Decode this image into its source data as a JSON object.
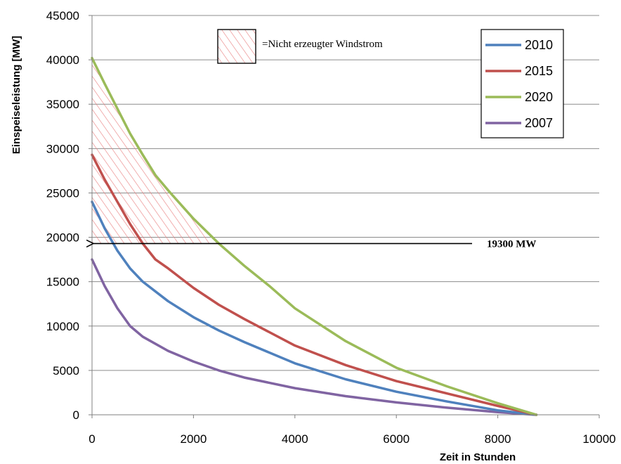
{
  "chart_data": {
    "type": "line",
    "title": "",
    "xlabel": "Zeit in Stunden",
    "ylabel": "Einspeiseleistung [MW]",
    "xlim": [
      0,
      10000
    ],
    "ylim": [
      0,
      45000
    ],
    "xticks": [
      0,
      2000,
      4000,
      6000,
      8000,
      10000
    ],
    "yticks": [
      0,
      5000,
      10000,
      15000,
      20000,
      25000,
      30000,
      35000,
      40000,
      45000
    ],
    "grid": "horizontal",
    "legend_position": "top-right",
    "series": [
      {
        "name": "2010",
        "color": "#4f81bd",
        "x": [
          0,
          250,
          500,
          750,
          1000,
          1500,
          2000,
          2500,
          3000,
          4000,
          5000,
          6000,
          7000,
          8000,
          8760
        ],
        "y": [
          24000,
          21000,
          18500,
          16500,
          15000,
          12800,
          11000,
          9500,
          8200,
          5800,
          4000,
          2600,
          1500,
          500,
          0
        ]
      },
      {
        "name": "2015",
        "color": "#c0504d",
        "x": [
          0,
          250,
          500,
          750,
          1000,
          1250,
          1500,
          2000,
          2500,
          3000,
          4000,
          5000,
          6000,
          7000,
          8000,
          8760
        ],
        "y": [
          29300,
          26500,
          24000,
          21500,
          19300,
          17500,
          16500,
          14300,
          12400,
          10800,
          7800,
          5600,
          3800,
          2400,
          1000,
          0
        ]
      },
      {
        "name": "2020",
        "color": "#9bbb59",
        "x": [
          0,
          250,
          500,
          750,
          1000,
          1250,
          1500,
          2000,
          2500,
          3000,
          3500,
          4000,
          5000,
          6000,
          7000,
          8000,
          8760
        ],
        "y": [
          40200,
          37300,
          34500,
          31700,
          29300,
          27000,
          25300,
          22100,
          19300,
          16800,
          14500,
          12000,
          8300,
          5300,
          3200,
          1300,
          0
        ]
      },
      {
        "name": "2007",
        "color": "#8064a2",
        "x": [
          0,
          250,
          500,
          750,
          1000,
          1500,
          2000,
          2500,
          3000,
          4000,
          5000,
          6000,
          7000,
          8000,
          8760
        ],
        "y": [
          17500,
          14500,
          12000,
          10000,
          8800,
          7200,
          6000,
          5000,
          4200,
          3000,
          2100,
          1400,
          800,
          300,
          0
        ]
      }
    ],
    "annotations": {
      "hatch_legend_label": "=Nicht erzeugter Windstrom",
      "threshold_value": 19300,
      "threshold_label": "19300 MW",
      "hatch_color": "#e87d7d"
    }
  }
}
